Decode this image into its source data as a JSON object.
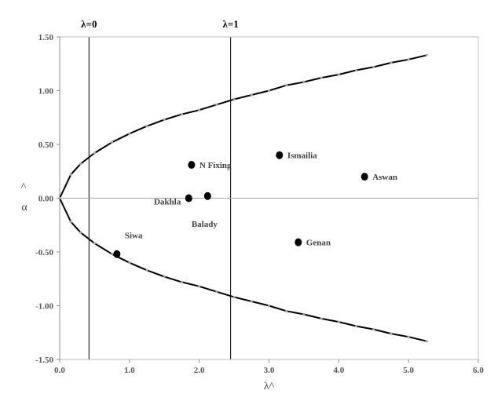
{
  "chart_data": {
    "type": "scatter",
    "title": "",
    "xlabel": "λ^",
    "ylabel_hat": "^",
    "ylabel": "α",
    "xlim": [
      0,
      6
    ],
    "ylim": [
      -1.5,
      1.5
    ],
    "x_ticks": [
      "0.0",
      "1.0",
      "2.0",
      "3.0",
      "4.0",
      "5.0",
      "6.0"
    ],
    "y_ticks": [
      "1.50",
      "1.00",
      "0.50",
      "0.00",
      "-0.50",
      "-1.00",
      "-1.50"
    ],
    "grid": false,
    "reference_lines": [
      {
        "label": "λ=0",
        "x": 0.42
      },
      {
        "label": "λ=1",
        "x": 2.45
      }
    ],
    "boundary_upper": [
      [
        0.0,
        0.0
      ],
      [
        0.16,
        0.22
      ],
      [
        0.3,
        0.32
      ],
      [
        0.5,
        0.42
      ],
      [
        0.75,
        0.52
      ],
      [
        1.0,
        0.6
      ],
      [
        1.25,
        0.67
      ],
      [
        1.5,
        0.73
      ],
      [
        1.75,
        0.78
      ],
      [
        2.0,
        0.82
      ],
      [
        2.25,
        0.87
      ],
      [
        2.5,
        0.92
      ],
      [
        2.75,
        0.96
      ],
      [
        3.0,
        1.0
      ],
      [
        3.25,
        1.05
      ],
      [
        3.5,
        1.08
      ],
      [
        3.75,
        1.12
      ],
      [
        4.0,
        1.15
      ],
      [
        4.25,
        1.19
      ],
      [
        4.5,
        1.22
      ],
      [
        4.75,
        1.26
      ],
      [
        5.0,
        1.29
      ],
      [
        5.26,
        1.33
      ]
    ],
    "boundary_lower": [
      [
        0.0,
        0.0
      ],
      [
        0.16,
        -0.22
      ],
      [
        0.3,
        -0.32
      ],
      [
        0.5,
        -0.42
      ],
      [
        0.75,
        -0.52
      ],
      [
        1.0,
        -0.6
      ],
      [
        1.25,
        -0.67
      ],
      [
        1.5,
        -0.73
      ],
      [
        1.75,
        -0.78
      ],
      [
        2.0,
        -0.82
      ],
      [
        2.25,
        -0.87
      ],
      [
        2.5,
        -0.92
      ],
      [
        2.75,
        -0.96
      ],
      [
        3.0,
        -1.0
      ],
      [
        3.25,
        -1.05
      ],
      [
        3.5,
        -1.08
      ],
      [
        3.75,
        -1.12
      ],
      [
        4.0,
        -1.15
      ],
      [
        4.25,
        -1.19
      ],
      [
        4.5,
        -1.22
      ],
      [
        4.75,
        -1.26
      ],
      [
        5.0,
        -1.29
      ],
      [
        5.26,
        -1.33
      ]
    ],
    "points": [
      {
        "label": "N Fixing",
        "x": 1.89,
        "y": 0.31,
        "label_pos": "right"
      },
      {
        "label": "Ismailia",
        "x": 3.15,
        "y": 0.4,
        "label_pos": "right"
      },
      {
        "label": "Aswan",
        "x": 4.37,
        "y": 0.2,
        "label_pos": "right"
      },
      {
        "label": "Dakhla",
        "x": 1.85,
        "y": 0.0,
        "label_pos": "left"
      },
      {
        "label": "Balady",
        "x": 2.12,
        "y": 0.02,
        "label_pos": "below"
      },
      {
        "label": "Siwa",
        "x": 0.82,
        "y": -0.52,
        "label_pos": "above-right"
      },
      {
        "label": "Genan",
        "x": 3.42,
        "y": -0.41,
        "label_pos": "right"
      }
    ]
  }
}
